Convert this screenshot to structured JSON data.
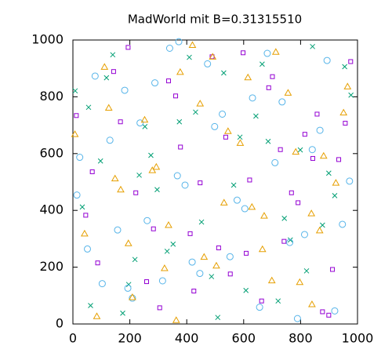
{
  "chart_data": {
    "type": "scatter",
    "title": "MadWorld mit B=0.31315510",
    "xlim": [
      0,
      1000
    ],
    "ylim": [
      0,
      1000
    ],
    "xticks": [
      0,
      200,
      400,
      600,
      800,
      1000
    ],
    "yticks": [
      0,
      200,
      400,
      600,
      800,
      1000
    ],
    "series": [
      {
        "color": "#9400d3",
        "marker": "square",
        "x": [
          12,
          87,
          143,
          221,
          305,
          378,
          412,
          489,
          553,
          621,
          688,
          742,
          815,
          877,
          934,
          976,
          45,
          167,
          259,
          336,
          447,
          512,
          598,
          663,
          729,
          791,
          858,
          912,
          68,
          194,
          283,
          361,
          425,
          537,
          609,
          701,
          768,
          843,
          899,
          957
        ],
        "values": [
          734,
          215,
          889,
          462,
          57,
          623,
          318,
          941,
          176,
          507,
          832,
          291,
          668,
          43,
          579,
          924,
          383,
          712,
          149,
          856,
          497,
          268,
          955,
          81,
          614,
          427,
          739,
          192,
          536,
          974,
          335,
          803,
          116,
          658,
          249,
          871,
          462,
          583,
          31,
          707
        ]
      },
      {
        "color": "#009e73",
        "marker": "cross",
        "x": [
          33,
          118,
          196,
          274,
          352,
          431,
          509,
          587,
          665,
          743,
          821,
          899,
          977,
          62,
          140,
          218,
          296,
          374,
          452,
          530,
          608,
          686,
          764,
          842,
          920,
          8,
          97,
          175,
          253,
          331,
          409,
          487,
          565,
          643,
          721,
          799,
          877,
          955,
          55,
          233
        ],
        "values": [
          412,
          867,
          139,
          594,
          281,
          746,
          23,
          658,
          915,
          372,
          187,
          531,
          806,
          65,
          948,
          227,
          473,
          712,
          359,
          884,
          118,
          643,
          296,
          977,
          452,
          821,
          574,
          38,
          695,
          256,
          939,
          167,
          489,
          732,
          81,
          613,
          348,
          906,
          763,
          524
        ]
      },
      {
        "color": "#56b4e9",
        "marker": "circle",
        "x": [
          24,
          103,
          182,
          261,
          340,
          419,
          498,
          577,
          656,
          735,
          814,
          893,
          972,
          51,
          130,
          209,
          288,
          367,
          446,
          525,
          604,
          683,
          762,
          841,
          920,
          78,
          157,
          236,
          315,
          394,
          473,
          552,
          631,
          710,
          789,
          868,
          947,
          14,
          193,
          372
        ],
        "values": [
          587,
          142,
          823,
          364,
          971,
          218,
          695,
          436,
          59,
          782,
          315,
          928,
          503,
          264,
          647,
          91,
          849,
          522,
          178,
          739,
          406,
          953,
          287,
          614,
          46,
          873,
          331,
          708,
          152,
          489,
          916,
          237,
          796,
          568,
          19,
          682,
          351,
          454,
          126,
          994
        ]
      },
      {
        "color": "#e69f00",
        "marker": "triangle",
        "x": [
          41,
          126,
          209,
          293,
          377,
          461,
          545,
          629,
          713,
          797,
          881,
          965,
          84,
          168,
          252,
          336,
          420,
          504,
          588,
          672,
          756,
          840,
          924,
          7,
          111,
          195,
          279,
          363,
          447,
          531,
          615,
          699,
          783,
          867,
          951,
          148,
          322,
          491,
          666,
          838
        ],
        "values": [
          318,
          761,
          94,
          553,
          887,
          236,
          679,
          412,
          958,
          147,
          592,
          836,
          27,
          473,
          719,
          348,
          982,
          205,
          637,
          381,
          814,
          69,
          497,
          668,
          905,
          284,
          541,
          13,
          776,
          427,
          868,
          153,
          606,
          329,
          744,
          512,
          196,
          941,
          263,
          389
        ]
      }
    ]
  }
}
